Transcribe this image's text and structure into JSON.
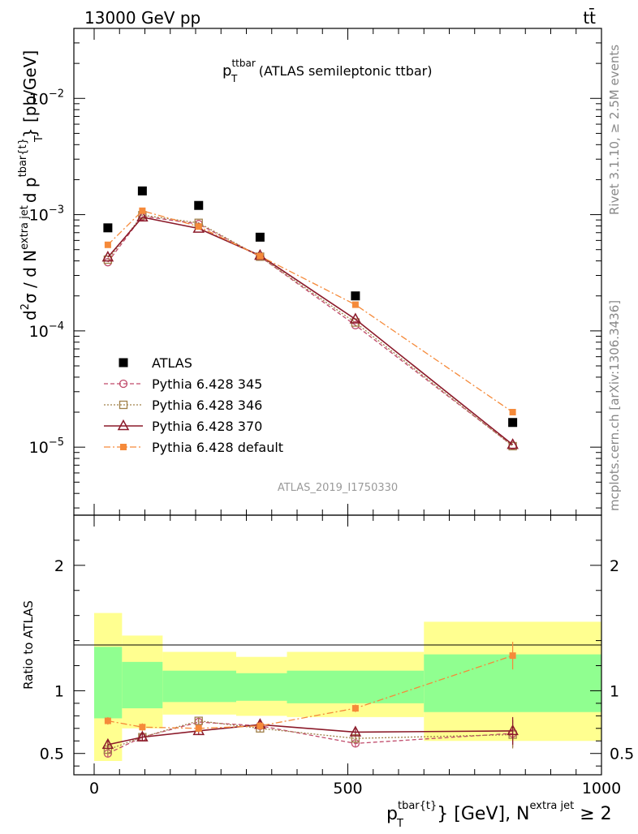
{
  "header": {
    "energy_label": "13000 GeV pp",
    "process_label": "tt̄"
  },
  "side_text": {
    "rivet": "Rivet 3.1.10, ≥ 2.5M events",
    "mcplots": "mcplots.cern.ch [arXiv:1306.3436]"
  },
  "colors": {
    "data": "#000000",
    "p345": "#c04a6a",
    "p346": "#a0804a",
    "p370": "#8b1a2a",
    "pdef": "#f58a3a",
    "band_outer": "#ffff90",
    "band_inner": "#90ff90"
  },
  "chart_data": [
    {
      "type": "scatter",
      "title": "p_T^ttbar (ATLAS semileptonic ttbar)",
      "title_parts": {
        "p": "p",
        "sub": "T",
        "sup": "ttbar",
        "rest": "(ATLAS semileptonic ttbar)"
      },
      "analysis_label": "ATLAS_2019_I1750330",
      "ylabel": "d²σ / d N^{extra jet} d p_T^{tbar{t}} [pb/GeV]",
      "ylabel_parts": {
        "a": "d",
        "b": "σ  /  d N",
        "c": "d p",
        "sup1": "2",
        "sup2": "extra jet",
        "sup3": "tbar{t}",
        "sub": "T",
        "unit": "} [pb/GeV]"
      },
      "yscale": "log",
      "xlim": [
        -40,
        1000
      ],
      "ylim": [
        2.6e-06,
        0.04
      ],
      "yticks": [
        {
          "value": 1e-05,
          "base": "10",
          "exp": "−5"
        },
        {
          "value": 0.0001,
          "base": "10",
          "exp": "−4"
        },
        {
          "value": 0.001,
          "base": "10",
          "exp": "−3"
        },
        {
          "value": 0.01,
          "base": "10",
          "exp": "−2"
        }
      ],
      "legend_position": "lower-left",
      "series": [
        {
          "name": "ATLAS",
          "color": "#000000",
          "x": [
            27,
            95,
            206,
            327,
            515,
            825
          ],
          "y": [
            0.00077,
            0.0016,
            0.0012,
            0.00064,
            0.0002,
            1.63e-05
          ]
        },
        {
          "name": "Pythia 6.428 345",
          "color": "#c04a6a",
          "x": [
            27,
            95,
            206,
            327,
            515,
            825
          ],
          "y": [
            0.00039,
            0.00097,
            0.00083,
            0.000435,
            0.000112,
            1.03e-05
          ]
        },
        {
          "name": "Pythia 6.428 346",
          "color": "#a0804a",
          "x": [
            27,
            95,
            206,
            327,
            515,
            825
          ],
          "y": [
            0.00041,
            0.00099,
            0.00085,
            0.000435,
            0.000118,
            1.02e-05
          ]
        },
        {
          "name": "Pythia 6.428 370",
          "color": "#8b1a2a",
          "x": [
            27,
            95,
            206,
            327,
            515,
            825
          ],
          "y": [
            0.00043,
            0.00095,
            0.00076,
            0.000445,
            0.000126,
            1.05e-05
          ]
        },
        {
          "name": "Pythia 6.428 default",
          "color": "#f58a3a",
          "x": [
            27,
            95,
            206,
            327,
            515,
            825
          ],
          "y": [
            0.00055,
            0.00108,
            0.00079,
            0.00044,
            0.000168,
            2e-05
          ]
        }
      ]
    },
    {
      "type": "line",
      "ylabel": "Ratio to ATLAS",
      "xlabel_parts": {
        "p": "p",
        "sub": "T",
        "sup1": "tbar{t}",
        "mid": "} [GeV], N",
        "sup2": "extra jet",
        "end": " ≥ 2"
      },
      "xlim": [
        -40,
        1000
      ],
      "ylim": [
        0.33,
        2.4
      ],
      "xticks": [
        0,
        500,
        1000
      ],
      "yticks_left": [
        0.5,
        1,
        2
      ],
      "yticks_right": [
        0.5,
        1,
        2
      ],
      "bin_edges": [
        0,
        55,
        135,
        280,
        380,
        650,
        1000
      ],
      "band_outer": [
        [
          0.44,
          1.62
        ],
        [
          0.7,
          1.44
        ],
        [
          0.81,
          1.31
        ],
        [
          0.8,
          1.27
        ],
        [
          0.79,
          1.31
        ],
        [
          0.6,
          1.55
        ]
      ],
      "band_inner": [
        [
          0.78,
          1.35
        ],
        [
          0.86,
          1.23
        ],
        [
          0.91,
          1.16
        ],
        [
          0.92,
          1.14
        ],
        [
          0.9,
          1.16
        ],
        [
          0.83,
          1.29
        ]
      ],
      "series": [
        {
          "name": "Pythia 6.428 345",
          "x": [
            27,
            95,
            206,
            327,
            515,
            825
          ],
          "y": [
            0.5,
            0.63,
            0.75,
            0.72,
            0.58,
            0.66
          ]
        },
        {
          "name": "Pythia 6.428 346",
          "x": [
            27,
            95,
            206,
            327,
            515,
            825
          ],
          "y": [
            0.53,
            0.63,
            0.76,
            0.7,
            0.62,
            0.65
          ]
        },
        {
          "name": "Pythia 6.428 370",
          "x": [
            27,
            95,
            206,
            327,
            515,
            825
          ],
          "y": [
            0.57,
            0.63,
            0.68,
            0.73,
            0.67,
            0.68
          ]
        },
        {
          "name": "Pythia 6.428 default",
          "x": [
            27,
            95,
            206,
            327,
            515,
            825
          ],
          "y": [
            0.76,
            0.71,
            0.7,
            0.72,
            0.86,
            1.28
          ]
        }
      ]
    }
  ]
}
